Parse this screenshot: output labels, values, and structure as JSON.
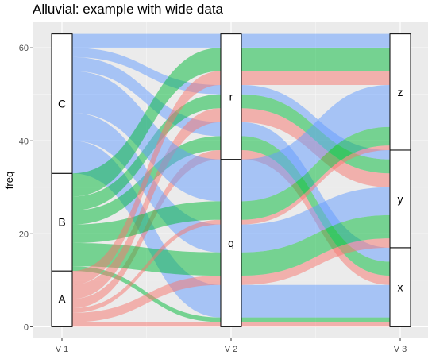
{
  "chart_data": {
    "type": "alluvial",
    "title": "Alluvial: example with wide data",
    "xlabel": "",
    "ylabel": "freq",
    "axes": [
      "V1",
      "V2",
      "V3"
    ],
    "x_tick_labels": [
      "V 1",
      "V 2",
      "V 3"
    ],
    "ylim": [
      -2.5,
      65.5
    ],
    "y_ticks": [
      0,
      20,
      40,
      60
    ],
    "y_tick_labels": [
      "0",
      "20",
      "40",
      "60"
    ],
    "grid": true,
    "strata": {
      "V1": [
        {
          "label": "A",
          "value": 12
        },
        {
          "label": "B",
          "value": 21
        },
        {
          "label": "C",
          "value": 30
        }
      ],
      "V2": [
        {
          "label": "q",
          "value": 36
        },
        {
          "label": "r",
          "value": 27
        }
      ],
      "V3": [
        {
          "label": "x",
          "value": 17
        },
        {
          "label": "y",
          "value": 21
        },
        {
          "label": "z",
          "value": 25
        }
      ]
    },
    "fill_by": "V1",
    "fill_colors": {
      "A": "#F8766D",
      "B": "#00BA38",
      "C": "#619CFF"
    },
    "flows": [
      {
        "V1": "A",
        "V2": "q",
        "V3": "x",
        "freq": 1
      },
      {
        "V1": "B",
        "V2": "q",
        "V3": "x",
        "freq": 1
      },
      {
        "V1": "C",
        "V2": "q",
        "V3": "x",
        "freq": 7
      },
      {
        "V1": "A",
        "V2": "r",
        "V3": "x",
        "freq": 2
      },
      {
        "V1": "B",
        "V2": "r",
        "V3": "x",
        "freq": 3
      },
      {
        "V1": "C",
        "V2": "r",
        "V3": "x",
        "freq": 3
      },
      {
        "V1": "A",
        "V2": "q",
        "V3": "y",
        "freq": 2
      },
      {
        "V1": "B",
        "V2": "q",
        "V3": "y",
        "freq": 5
      },
      {
        "V1": "C",
        "V2": "q",
        "V3": "y",
        "freq": 6
      },
      {
        "V1": "A",
        "V2": "r",
        "V3": "y",
        "freq": 3
      },
      {
        "V1": "B",
        "V2": "r",
        "V3": "y",
        "freq": 3
      },
      {
        "V1": "C",
        "V2": "r",
        "V3": "y",
        "freq": 2
      },
      {
        "V1": "A",
        "V2": "q",
        "V3": "z",
        "freq": 1
      },
      {
        "V1": "B",
        "V2": "q",
        "V3": "z",
        "freq": 4
      },
      {
        "V1": "C",
        "V2": "q",
        "V3": "z",
        "freq": 9
      },
      {
        "V1": "A",
        "V2": "r",
        "V3": "z",
        "freq": 3
      },
      {
        "V1": "B",
        "V2": "r",
        "V3": "z",
        "freq": 5
      },
      {
        "V1": "C",
        "V2": "r",
        "V3": "z",
        "freq": 3
      }
    ]
  }
}
